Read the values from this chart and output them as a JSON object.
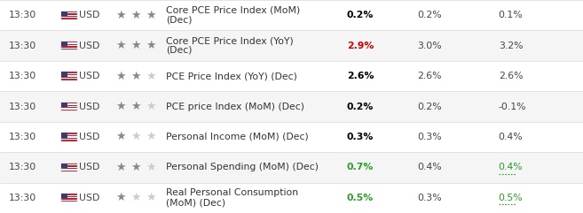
{
  "rows": [
    {
      "time": "13:30",
      "currency": "USD",
      "stars_filled": 3,
      "stars_total": 3,
      "indicator_lines": [
        "Core PCE Price Index (MoM)",
        "(Dec)"
      ],
      "actual": "0.2%",
      "actual_color": "#000000",
      "actual_bold": true,
      "forecast": "0.2%",
      "previous": "0.1%",
      "prev_color": "#444444",
      "prev_underline": false,
      "bg": "#ffffff"
    },
    {
      "time": "13:30",
      "currency": "USD",
      "stars_filled": 3,
      "stars_total": 3,
      "indicator_lines": [
        "Core PCE Price Index (YoY)",
        "(Dec)"
      ],
      "actual": "2.9%",
      "actual_color": "#cc0000",
      "actual_bold": true,
      "forecast": "3.0%",
      "previous": "3.2%",
      "prev_color": "#444444",
      "prev_underline": false,
      "bg": "#f5f5f5"
    },
    {
      "time": "13:30",
      "currency": "USD",
      "stars_filled": 2,
      "stars_total": 3,
      "indicator_lines": [
        "PCE Price Index (YoY) (Dec)"
      ],
      "actual": "2.6%",
      "actual_color": "#000000",
      "actual_bold": true,
      "forecast": "2.6%",
      "previous": "2.6%",
      "prev_color": "#444444",
      "prev_underline": false,
      "bg": "#ffffff"
    },
    {
      "time": "13:30",
      "currency": "USD",
      "stars_filled": 2,
      "stars_total": 3,
      "indicator_lines": [
        "PCE price Index (MoM) (Dec)"
      ],
      "actual": "0.2%",
      "actual_color": "#000000",
      "actual_bold": true,
      "forecast": "0.2%",
      "previous": "-0.1%",
      "prev_color": "#444444",
      "prev_underline": false,
      "bg": "#f5f5f5"
    },
    {
      "time": "13:30",
      "currency": "USD",
      "stars_filled": 1,
      "stars_total": 3,
      "indicator_lines": [
        "Personal Income (MoM) (Dec)"
      ],
      "actual": "0.3%",
      "actual_color": "#000000",
      "actual_bold": true,
      "forecast": "0.3%",
      "previous": "0.4%",
      "prev_color": "#444444",
      "prev_underline": false,
      "bg": "#ffffff"
    },
    {
      "time": "13:30",
      "currency": "USD",
      "stars_filled": 2,
      "stars_total": 3,
      "indicator_lines": [
        "Personal Spending (MoM) (Dec)"
      ],
      "actual": "0.7%",
      "actual_color": "#2a9d2a",
      "actual_bold": true,
      "forecast": "0.4%",
      "previous": "0.4%",
      "prev_color": "#2a9d2a",
      "prev_underline": true,
      "bg": "#f5f5f5"
    },
    {
      "time": "13:30",
      "currency": "USD",
      "stars_filled": 1,
      "stars_total": 3,
      "indicator_lines": [
        "Real Personal Consumption",
        "(MoM) (Dec)"
      ],
      "actual": "0.5%",
      "actual_color": "#2a9d2a",
      "actual_bold": true,
      "forecast": "0.3%",
      "previous": "0.5%",
      "prev_color": "#2a9d2a",
      "prev_underline": true,
      "bg": "#ffffff"
    }
  ],
  "col_x_norm": {
    "time": 0.015,
    "flag": 0.105,
    "currency": 0.135,
    "stars": 0.198,
    "indicator": 0.285,
    "actual": 0.595,
    "forecast": 0.715,
    "previous": 0.855
  },
  "border_color": "#d8d8d8",
  "star_filled_color": "#888888",
  "star_empty_color": "#cccccc",
  "font_size": 7.8,
  "fig_width": 6.57,
  "fig_height": 2.41,
  "dpi": 100
}
